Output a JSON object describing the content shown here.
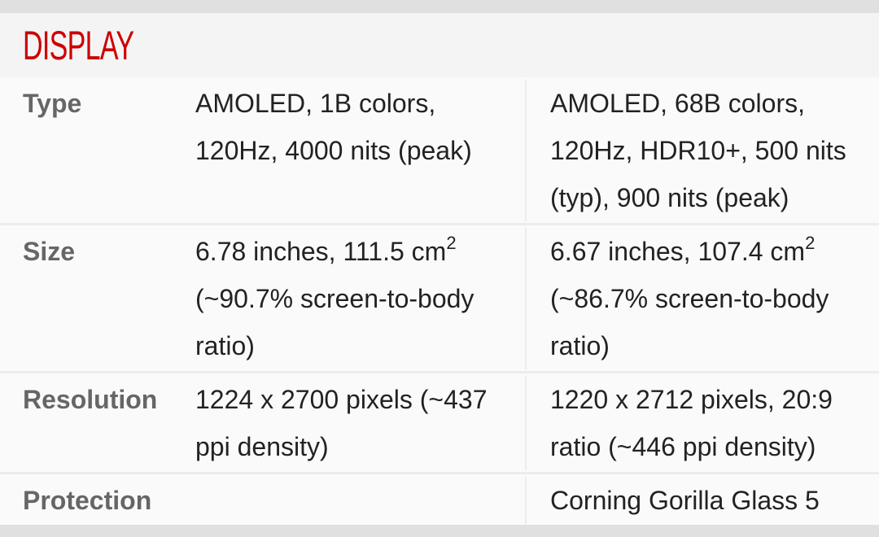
{
  "section_title": "DISPLAY",
  "rows": [
    {
      "label": "Type",
      "phone1": "AMOLED, 1B colors, 120Hz, 4000 nits (peak)",
      "phone2": "AMOLED, 68B colors, 120Hz, HDR10+, 500 nits (typ), 900 nits (peak)"
    },
    {
      "label": "Size",
      "phone1": "6.78 inches, 111.5 cm",
      "phone1_sup": "2",
      "phone1_rest": "(~90.7% screen-to-body ratio)",
      "phone2": "6.67 inches, 107.4 cm",
      "phone2_sup": "2",
      "phone2_rest": "(~86.7% screen-to-body ratio)"
    },
    {
      "label": "Resolution",
      "phone1": "1224 x 2700 pixels (~437 ppi density)",
      "phone2": "1220 x 2712 pixels, 20:9 ratio (~446 ppi density)"
    },
    {
      "label": "Protection",
      "phone1": "",
      "phone2": "Corning Gorilla Glass 5"
    }
  ],
  "colors": {
    "title": "#cc0000",
    "label": "#666666",
    "value": "#222222"
  }
}
